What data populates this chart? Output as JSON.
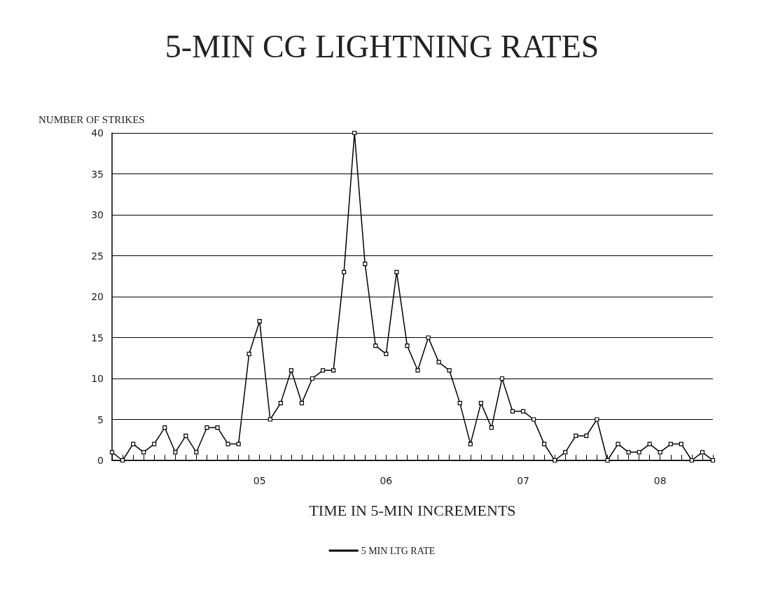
{
  "chart_data": {
    "type": "line",
    "title": "5-MIN CG LIGHTNING RATES",
    "xlabel": "TIME IN 5-MIN INCREMENTS",
    "ylabel": "NUMBER OF STRIKES",
    "categories": [
      null,
      null,
      null,
      null,
      null,
      null,
      null,
      null,
      null,
      null,
      null,
      null,
      null,
      null,
      "05",
      null,
      null,
      null,
      null,
      null,
      null,
      null,
      null,
      null,
      null,
      null,
      "06",
      null,
      null,
      null,
      null,
      null,
      null,
      null,
      null,
      null,
      null,
      null,
      null,
      "07",
      null,
      null,
      null,
      null,
      null,
      null,
      null,
      null,
      null,
      null,
      null,
      null,
      "08",
      null,
      null,
      null,
      null,
      null
    ],
    "series": [
      {
        "name": "5 MIN LTG RATE",
        "color": "#000000",
        "values": [
          1,
          0,
          2,
          1,
          2,
          4,
          1,
          3,
          1,
          4,
          4,
          2,
          2,
          13,
          17,
          5,
          7,
          11,
          7,
          10,
          11,
          11,
          23,
          40,
          24,
          14,
          13,
          23,
          14,
          11,
          15,
          12,
          11,
          7,
          2,
          7,
          4,
          10,
          6,
          6,
          5,
          2,
          0,
          1,
          3,
          3,
          5,
          0,
          2,
          1,
          1,
          2,
          1,
          2,
          2,
          0,
          1,
          0
        ]
      }
    ],
    "ylim": [
      0,
      40
    ],
    "yticks": [
      0,
      5,
      10,
      15,
      20,
      25,
      30,
      35,
      40
    ],
    "grid": "y",
    "legend": "bottom",
    "marker": "square",
    "line_style": "solid"
  }
}
